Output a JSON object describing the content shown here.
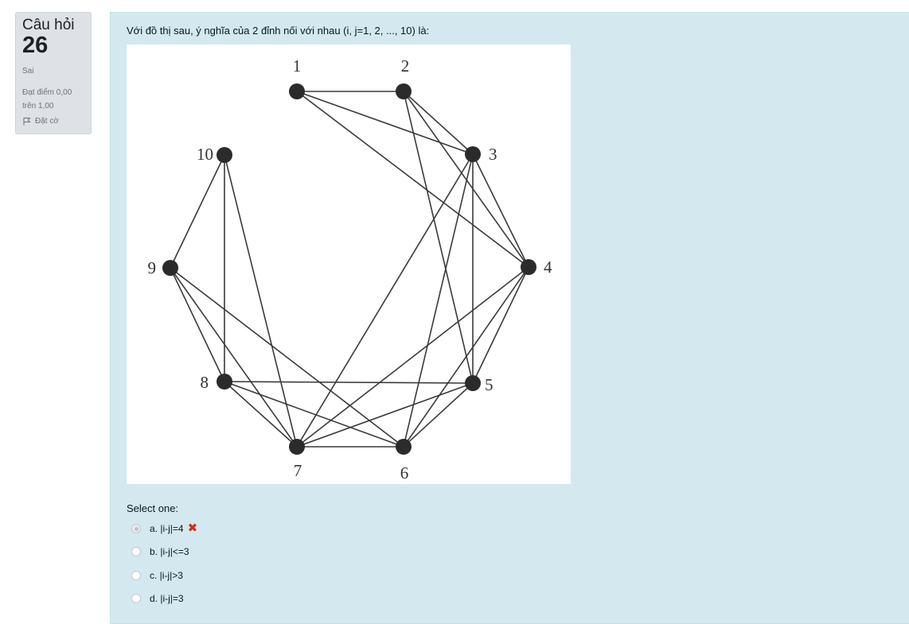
{
  "question_info": {
    "label": "Câu hỏi",
    "number": "26",
    "state": "Sai",
    "grade": "Đạt điểm 0,00 trên 1,00",
    "flag_label": "Đặt cờ"
  },
  "question": {
    "text": "Với đồ thị sau, ý nghĩa của 2 đỉnh nối với nhau (i, j=1, 2, ..., 10) là:",
    "prompt": "Select one:"
  },
  "graph": {
    "vertices": [
      "1",
      "2",
      "3",
      "4",
      "5",
      "6",
      "7",
      "8",
      "9",
      "10"
    ],
    "edges": [
      [
        1,
        2
      ],
      [
        1,
        3
      ],
      [
        1,
        4
      ],
      [
        2,
        3
      ],
      [
        2,
        4
      ],
      [
        2,
        5
      ],
      [
        3,
        4
      ],
      [
        3,
        5
      ],
      [
        3,
        6
      ],
      [
        3,
        7
      ],
      [
        4,
        5
      ],
      [
        4,
        6
      ],
      [
        4,
        7
      ],
      [
        5,
        6
      ],
      [
        5,
        7
      ],
      [
        5,
        8
      ],
      [
        6,
        7
      ],
      [
        6,
        8
      ],
      [
        6,
        9
      ],
      [
        7,
        8
      ],
      [
        7,
        9
      ],
      [
        7,
        10
      ],
      [
        8,
        9
      ],
      [
        8,
        10
      ],
      [
        9,
        10
      ]
    ]
  },
  "answers": [
    {
      "label": "a. |i-j|=4",
      "selected": true,
      "marked_wrong": true
    },
    {
      "label": "b. |i-j|<=3",
      "selected": false,
      "marked_wrong": false
    },
    {
      "label": "c. |i-j|>3",
      "selected": false,
      "marked_wrong": false
    },
    {
      "label": "d. |i-j|=3",
      "selected": false,
      "marked_wrong": false
    }
  ],
  "colors": {
    "incorrect": "#ca3120",
    "panel": "#d3e9ef",
    "info": "#dee2e6"
  }
}
